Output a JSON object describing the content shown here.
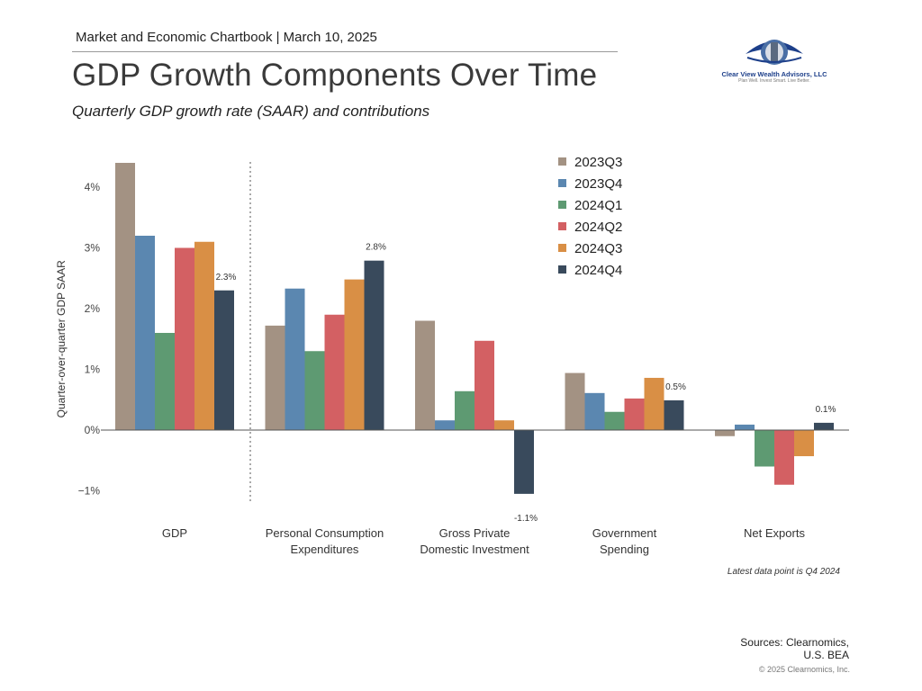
{
  "header": {
    "chartbook": "Market and Economic Chartbook | March 10, 2025",
    "title": "GDP Growth Components Over Time",
    "subtitle": "Quarterly GDP growth rate (SAAR) and contributions"
  },
  "logo": {
    "name": "Clear View Wealth Advisors, LLC",
    "tagline": "Plan Well. Invest Smart. Live Better.",
    "colors": {
      "eye": "#1d3f8a",
      "iris": "#4a6fa5"
    }
  },
  "chart_data": {
    "type": "bar",
    "ylabel": "Quarter-over-quarter GDP SAAR",
    "ylim": [
      -1.3,
      4.5
    ],
    "yticks": [
      {
        "value": 4,
        "label": "4%"
      },
      {
        "value": 3,
        "label": "3%"
      },
      {
        "value": 2,
        "label": "2%"
      },
      {
        "value": 1,
        "label": "1%"
      },
      {
        "value": 0,
        "label": "0%"
      },
      {
        "value": -1,
        "label": "−1%"
      }
    ],
    "categories": [
      [
        "GDP"
      ],
      [
        "Personal Consumption",
        "Expenditures"
      ],
      [
        "Gross Private",
        "Domestic Investment"
      ],
      [
        "Government",
        "Spending"
      ],
      [
        "Net Exports"
      ]
    ],
    "series": [
      {
        "name": "2023Q3",
        "color": "#a39283",
        "values": [
          4.4,
          1.72,
          1.8,
          0.94,
          -0.1
        ]
      },
      {
        "name": "2023Q4",
        "color": "#5b87b0",
        "values": [
          3.2,
          2.33,
          0.16,
          0.61,
          0.09
        ]
      },
      {
        "name": "2024Q1",
        "color": "#5e9a72",
        "values": [
          1.6,
          1.3,
          0.64,
          0.3,
          -0.6
        ]
      },
      {
        "name": "2024Q2",
        "color": "#d36063",
        "values": [
          3.0,
          1.9,
          1.47,
          0.52,
          -0.9
        ]
      },
      {
        "name": "2024Q3",
        "color": "#d98f45",
        "values": [
          3.1,
          2.48,
          0.16,
          0.86,
          -0.43
        ]
      },
      {
        "name": "2024Q4",
        "color": "#394a5c",
        "values": [
          2.3,
          2.79,
          -1.05,
          0.49,
          0.12
        ]
      }
    ],
    "data_labels": [
      "2.3%",
      "2.8%",
      "-1.1%",
      "0.5%",
      "0.1%"
    ],
    "legend_position": "top-right",
    "grid": false,
    "separator_after_first_category": true
  },
  "footnote": "Latest data point is Q4 2024",
  "sources": [
    "Sources: Clearnomics,",
    "U.S. BEA"
  ],
  "copyright": "© 2025 Clearnomics, Inc."
}
